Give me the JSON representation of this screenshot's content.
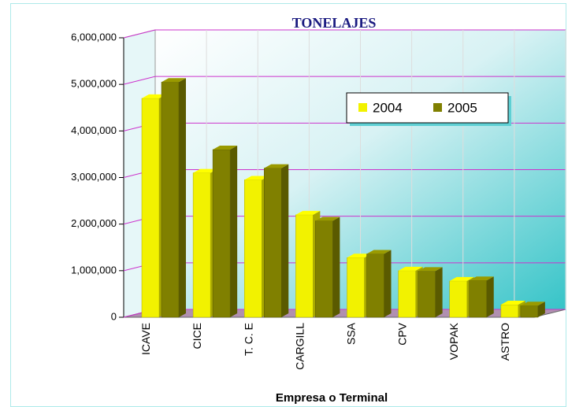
{
  "chart_data": {
    "type": "bar3d",
    "title": "TONELAJES",
    "x_label": "Empresa o Terminal",
    "categories": [
      "ICAVE",
      "CICE",
      "T. C. E",
      "CARGILL",
      "SSA",
      "CPV",
      "VOPAK",
      "ASTRO"
    ],
    "series": [
      {
        "name": "2004",
        "color": "#f2f200",
        "values": [
          4700000,
          3100000,
          2950000,
          2200000,
          1280000,
          1000000,
          780000,
          270000
        ]
      },
      {
        "name": "2005",
        "color": "#808000",
        "values": [
          5050000,
          3600000,
          3200000,
          2070000,
          1360000,
          990000,
          790000,
          250000
        ]
      }
    ],
    "ylim": [
      0,
      6000000
    ],
    "yticks": [
      0,
      {
        "value": 1000000,
        "label": "1,000,000"
      },
      {
        "value": 2000000,
        "label": "2,000,000"
      },
      {
        "value": 3000000,
        "label": "3,000,000"
      },
      {
        "value": 4000000,
        "label": "4,000,000"
      },
      {
        "value": 5000000,
        "label": "5,000,000"
      },
      {
        "value": 6000000,
        "label": "6,000,000"
      }
    ],
    "grid": true,
    "legend": "upper right"
  }
}
